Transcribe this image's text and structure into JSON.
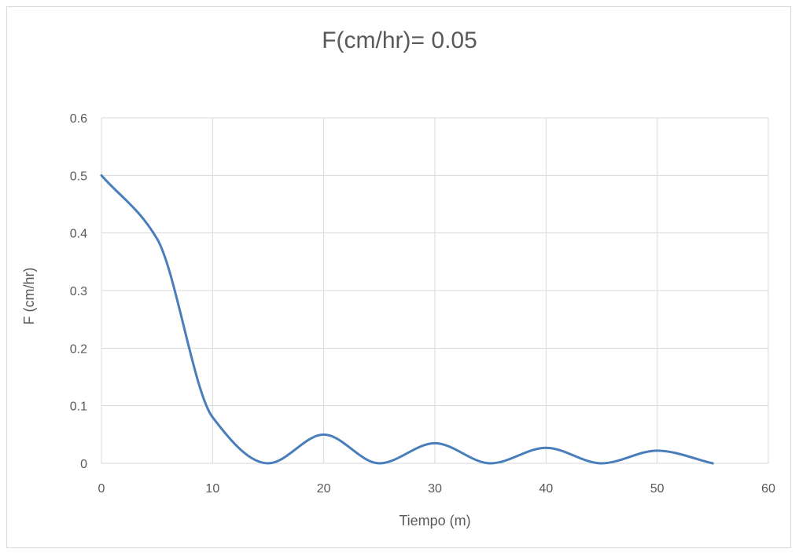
{
  "chart_data": {
    "type": "line",
    "title": "F(cm/hr)= 0.05",
    "xlabel": "Tiempo (m)",
    "ylabel": "F (cm/hr)",
    "xlim": [
      0,
      60
    ],
    "ylim": [
      0,
      0.6
    ],
    "x_ticks": [
      "0",
      "10",
      "20",
      "30",
      "40",
      "50",
      "60"
    ],
    "y_ticks": [
      "0",
      "0.1",
      "0.2",
      "0.3",
      "0.4",
      "0.5",
      "0.6"
    ],
    "grid": true,
    "legend": "none",
    "series": [
      {
        "color": "#4a7ebb",
        "x": [
          0,
          5,
          10,
          15,
          20,
          25,
          30,
          35,
          40,
          45,
          50,
          55
        ],
        "y": [
          0.5,
          0.39,
          0.08,
          0,
          0.05,
          0,
          0.035,
          0,
          0.027,
          0,
          0.022,
          0
        ]
      }
    ]
  }
}
